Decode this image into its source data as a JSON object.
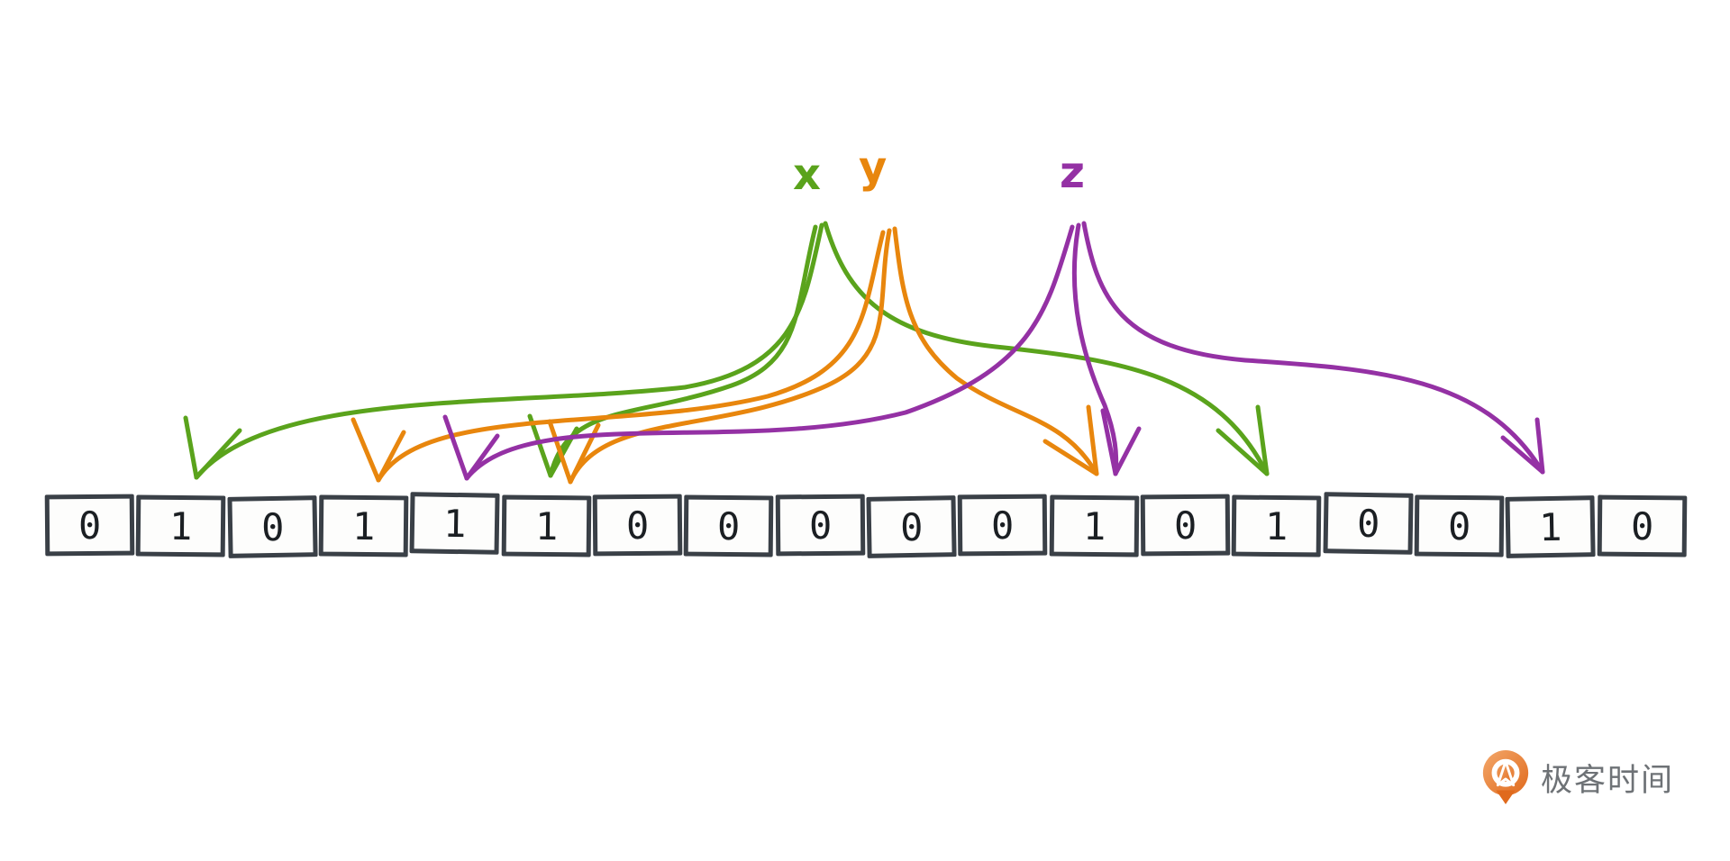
{
  "diagram": {
    "description": "bloom-filter hashing diagram",
    "elements": [
      {
        "id": "x",
        "label": "x",
        "color": "#5aa31c"
      },
      {
        "id": "y",
        "label": "y",
        "color": "#e8860d"
      },
      {
        "id": "z",
        "label": "z",
        "color": "#9431a4"
      }
    ],
    "bit_array": [
      "0",
      "1",
      "0",
      "1",
      "1",
      "1",
      "0",
      "0",
      "0",
      "0",
      "0",
      "1",
      "0",
      "1",
      "0",
      "0",
      "1",
      "0"
    ],
    "arrows": [
      {
        "source": "x",
        "target_index": 1
      },
      {
        "source": "x",
        "target_index": 5
      },
      {
        "source": "x",
        "target_index": 13
      },
      {
        "source": "y",
        "target_index": 3
      },
      {
        "source": "y",
        "target_index": 5
      },
      {
        "source": "y",
        "target_index": 11
      },
      {
        "source": "z",
        "target_index": 4
      },
      {
        "source": "z",
        "target_index": 11
      },
      {
        "source": "z",
        "target_index": 16
      }
    ]
  },
  "footer": {
    "brand_text": "极客时间",
    "brand_color": "#e8772c",
    "brand_text_color": "#6e7276"
  },
  "colors": {
    "box_border": "#3a4047",
    "digit": "#1b1f23",
    "background": "#ffffff"
  }
}
